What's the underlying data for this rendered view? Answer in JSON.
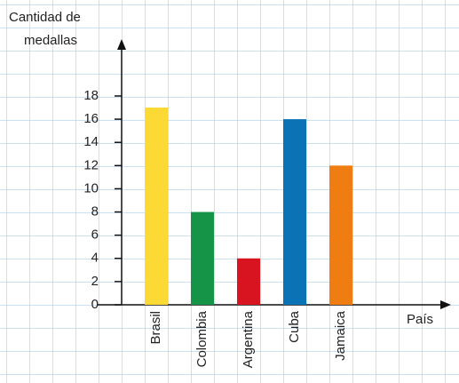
{
  "chart_data": {
    "type": "bar",
    "y_label": [
      "Cantidad de",
      "medallas"
    ],
    "x_label": "País",
    "categories": [
      "Brasil",
      "Colombia",
      "Argentina",
      "Cuba",
      "Jamaica"
    ],
    "values": [
      17,
      8,
      4,
      16,
      12
    ],
    "colors": [
      "#fcd934",
      "#159447",
      "#d7141f",
      "#0a72b5",
      "#ef7d12"
    ],
    "ylim": [
      0,
      18
    ],
    "yticks": [
      0,
      2,
      4,
      6,
      8,
      10,
      12,
      14,
      16,
      18
    ]
  }
}
